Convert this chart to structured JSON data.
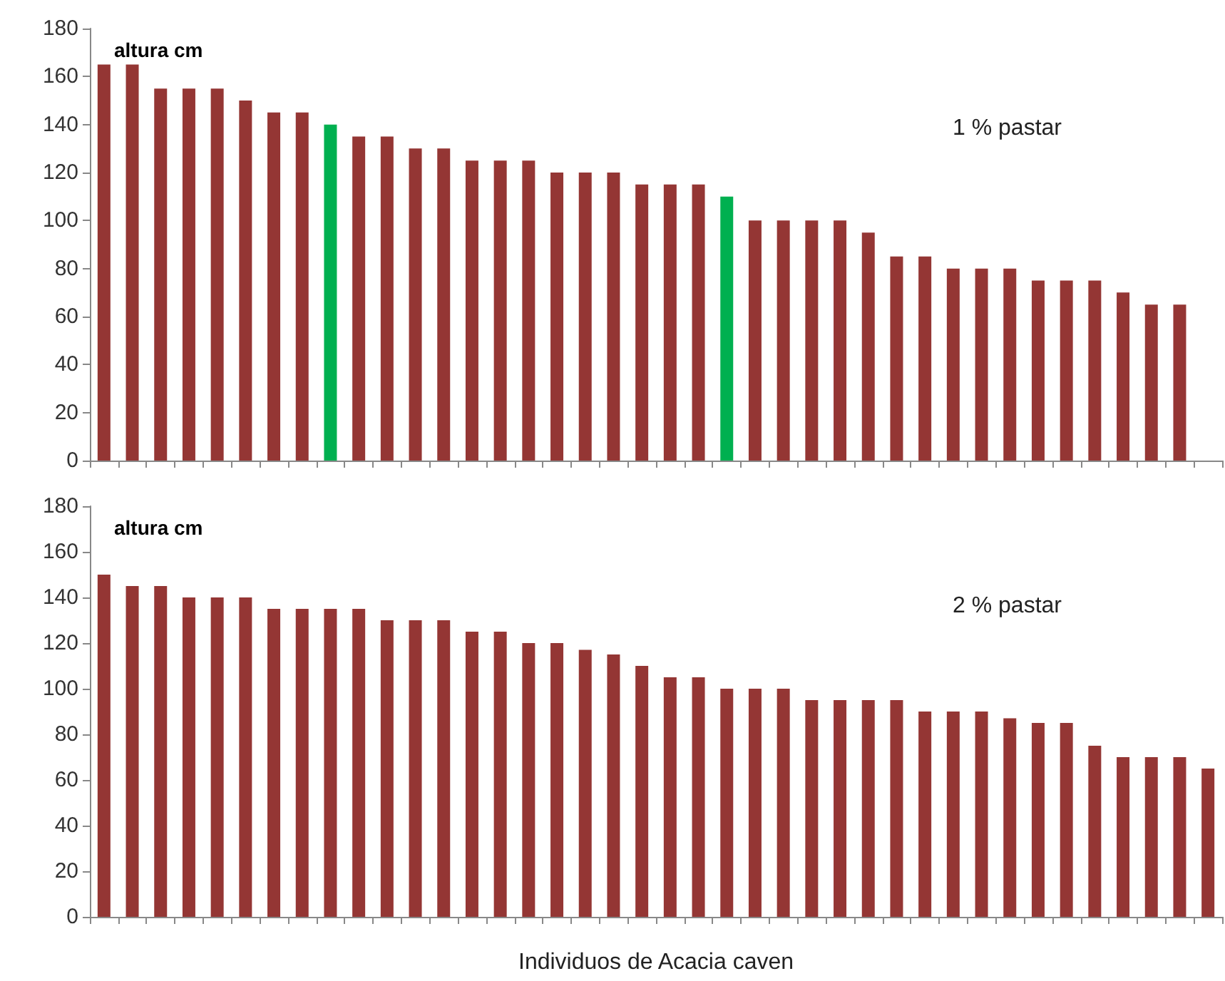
{
  "chart_data": [
    {
      "type": "bar",
      "ylabel": "altura cm",
      "annotations": [
        "1 % pastar"
      ],
      "categories": [
        null,
        null,
        null,
        null,
        null,
        null,
        null,
        null,
        null,
        null,
        null,
        null,
        null,
        null,
        null,
        null,
        null,
        null,
        null,
        null,
        null,
        null,
        null,
        null,
        null,
        null,
        null,
        null,
        null,
        null,
        null,
        null,
        null,
        null,
        null,
        null,
        null,
        null,
        null,
        null
      ],
      "values": [
        165,
        165,
        155,
        155,
        155,
        150,
        145,
        145,
        140,
        135,
        135,
        130,
        130,
        125,
        125,
        125,
        120,
        120,
        120,
        115,
        115,
        115,
        110,
        100,
        100,
        100,
        100,
        95,
        85,
        85,
        80,
        80,
        80,
        75,
        75,
        75,
        70,
        65,
        65,
        null
      ],
      "colors": [
        "#943634",
        "#943634",
        "#943634",
        "#943634",
        "#943634",
        "#943634",
        "#943634",
        "#943634",
        "#00b050",
        "#943634",
        "#943634",
        "#943634",
        "#943634",
        "#943634",
        "#943634",
        "#943634",
        "#943634",
        "#943634",
        "#943634",
        "#943634",
        "#943634",
        "#943634",
        "#00b050",
        "#943634",
        "#943634",
        "#943634",
        "#943634",
        "#943634",
        "#943634",
        "#943634",
        "#943634",
        "#943634",
        "#943634",
        "#943634",
        "#943634",
        "#943634",
        "#943634",
        "#943634",
        "#943634",
        "#943634"
      ],
      "ylim": [
        0,
        180
      ],
      "yticks": [
        0,
        20,
        40,
        60,
        80,
        100,
        120,
        140,
        160,
        180
      ]
    },
    {
      "type": "bar",
      "ylabel": "altura cm",
      "xlabel": "Individuos de Acacia caven",
      "annotations": [
        "2 % pastar"
      ],
      "categories": [
        null,
        null,
        null,
        null,
        null,
        null,
        null,
        null,
        null,
        null,
        null,
        null,
        null,
        null,
        null,
        null,
        null,
        null,
        null,
        null,
        null,
        null,
        null,
        null,
        null,
        null,
        null,
        null,
        null,
        null,
        null,
        null,
        null,
        null,
        null,
        null,
        null,
        null,
        null,
        null
      ],
      "values": [
        150,
        145,
        145,
        140,
        140,
        140,
        135,
        135,
        135,
        135,
        130,
        130,
        130,
        125,
        125,
        120,
        120,
        117,
        115,
        110,
        105,
        105,
        100,
        100,
        100,
        95,
        95,
        95,
        95,
        90,
        90,
        90,
        87,
        85,
        85,
        75,
        70,
        70,
        70,
        65
      ],
      "color": "#943634",
      "ylim": [
        0,
        180
      ],
      "yticks": [
        0,
        20,
        40,
        60,
        80,
        100,
        120,
        140,
        160,
        180
      ]
    }
  ]
}
